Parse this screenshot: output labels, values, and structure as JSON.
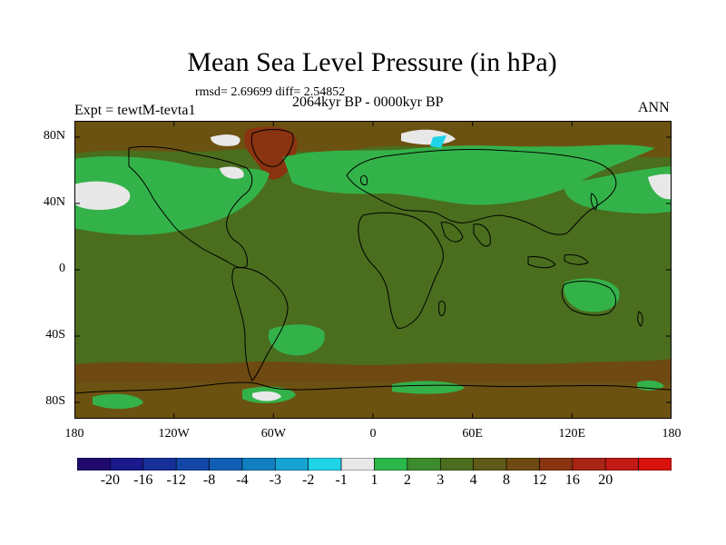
{
  "title": "Mean Sea Level Pressure (in hPa)",
  "stats_line": "rmsd= 2.69699  diff= 2.54852",
  "period": "2064kyr BP - 0000kyr BP",
  "experiment": "Expt = tewtM-tevta1",
  "season": "ANN",
  "map": {
    "projection": "cylindrical equidistant",
    "lon_range": [
      -180,
      180
    ],
    "lat_range": [
      -90,
      90
    ],
    "lon_ticks": [
      {
        "value": -180,
        "label": "180"
      },
      {
        "value": -120,
        "label": "120W"
      },
      {
        "value": -60,
        "label": "60W"
      },
      {
        "value": 0,
        "label": "0"
      },
      {
        "value": 60,
        "label": "60E"
      },
      {
        "value": 120,
        "label": "120E"
      },
      {
        "value": 180,
        "label": "180"
      }
    ],
    "lat_ticks": [
      {
        "value": 80,
        "label": "80N"
      },
      {
        "value": 40,
        "label": "40N"
      },
      {
        "value": 0,
        "label": "0"
      },
      {
        "value": -40,
        "label": "40S"
      },
      {
        "value": -80,
        "label": "80S"
      }
    ],
    "background_level": "3 to 4 hPa",
    "regions": [
      {
        "name": "north-atlantic-europe-green",
        "level": "1 to 2",
        "color": "#34b24a"
      },
      {
        "name": "north-pacific-green",
        "level": "1 to 2",
        "color": "#34b24a"
      },
      {
        "name": "north-pacific-white",
        "level": "-1 to 1",
        "color": "#ececec"
      },
      {
        "name": "south-atlantic-green",
        "level": "1 to 2",
        "color": "#34b24a"
      },
      {
        "name": "australia-green",
        "level": "1 to 2",
        "color": "#34b24a"
      },
      {
        "name": "antarctic-brown",
        "level": "8 to 12",
        "color": "#6e4a12"
      },
      {
        "name": "greenland-highs",
        "level": "12 to 16",
        "color": "#8a3310"
      },
      {
        "name": "arctic-brown",
        "level": "4 to 8",
        "color": "#6b5210"
      }
    ]
  },
  "colorbar": {
    "colors": [
      "#210a6e",
      "#1a1a8c",
      "#17309a",
      "#1247a8",
      "#0f60b4",
      "#117fc2",
      "#16a3d4",
      "#20d4e8",
      "#e8e8e8",
      "#2ab84a",
      "#3c8b2c",
      "#4a6e1e",
      "#5e5a18",
      "#6e4a12",
      "#8a3310",
      "#a82414",
      "#c21a14",
      "#d9120e"
    ],
    "labels": [
      "-20",
      "-16",
      "-12",
      "-8",
      "-4",
      "-3",
      "-2",
      "-1",
      "1",
      "2",
      "3",
      "4",
      "8",
      "12",
      "16",
      "20"
    ]
  }
}
